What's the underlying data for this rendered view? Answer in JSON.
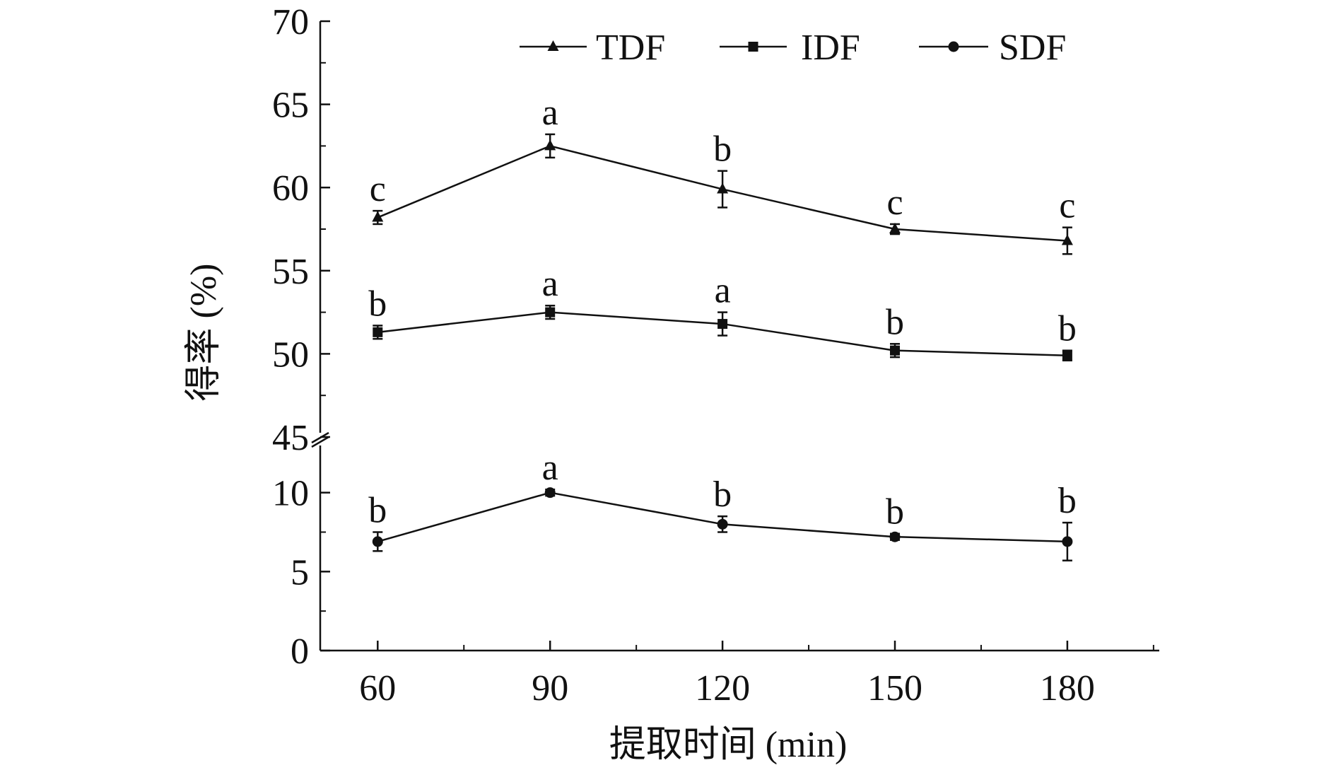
{
  "chart_data": {
    "type": "line",
    "xlabel": "提取时间 (min)",
    "ylabel": "得率 (%)",
    "x": [
      60,
      90,
      120,
      150,
      180
    ],
    "x_tick_labels": [
      "60",
      "90",
      "120",
      "150",
      "180"
    ],
    "y_axis_break": {
      "lower_range": [
        0,
        12
      ],
      "upper_range": [
        45,
        70
      ]
    },
    "y_tick_labels_lower": [
      "0",
      "5",
      "10"
    ],
    "y_tick_labels_upper": [
      "45",
      "50",
      "55",
      "60",
      "65",
      "70"
    ],
    "xlim": [
      50,
      196
    ],
    "grid": false,
    "legend_position": "top",
    "line_color": "#111111",
    "series": [
      {
        "name": "TDF",
        "marker": "triangle",
        "values": [
          58.2,
          62.5,
          59.9,
          57.5,
          56.8
        ],
        "errors": [
          0.4,
          0.7,
          1.1,
          0.3,
          0.8
        ],
        "significance": [
          "c",
          "a",
          "b",
          "c",
          "c"
        ]
      },
      {
        "name": "IDF",
        "marker": "square",
        "values": [
          51.3,
          52.5,
          51.8,
          50.2,
          49.9
        ],
        "errors": [
          0.4,
          0.4,
          0.7,
          0.4,
          0.3
        ],
        "significance": [
          "b",
          "a",
          "a",
          "b",
          "b"
        ]
      },
      {
        "name": "SDF",
        "marker": "circle",
        "values": [
          6.9,
          10.0,
          8.0,
          7.2,
          6.9
        ],
        "errors": [
          0.6,
          0.2,
          0.5,
          0.2,
          1.2
        ],
        "significance": [
          "b",
          "a",
          "b",
          "b",
          "b"
        ]
      }
    ]
  }
}
